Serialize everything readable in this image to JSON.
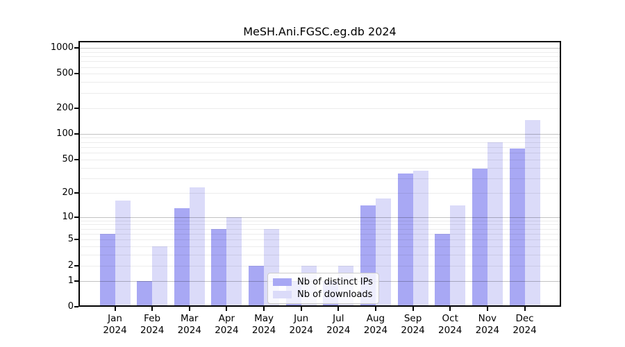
{
  "figure": {
    "title": "MeSH.Ani.FGSC.eg.db 2024"
  },
  "chart_data": {
    "type": "bar",
    "title": "MeSH.Ani.FGSC.eg.db 2024",
    "x": {
      "categories": [
        "Jan",
        "Feb",
        "Mar",
        "Apr",
        "May",
        "Jun",
        "Jul",
        "Aug",
        "Sep",
        "Oct",
        "Nov",
        "Dec"
      ],
      "year_label": "2024"
    },
    "y": {
      "scale": "log1p",
      "ticks": [
        0,
        1,
        2,
        5,
        10,
        20,
        50,
        100,
        200,
        500,
        1000
      ],
      "major_gridlines": [
        1,
        10,
        100,
        1000
      ],
      "ylim": [
        0,
        1000
      ],
      "grid": "horizontal-only"
    },
    "series": [
      {
        "name": "Nb of distinct IPs",
        "color": "#a8a8f4",
        "values": [
          6,
          1,
          13,
          7,
          2,
          1,
          1,
          14,
          34,
          6,
          39,
          67
        ]
      },
      {
        "name": "Nb of downloads",
        "color": "#dbdbf9",
        "values": [
          16,
          4,
          23,
          10,
          7,
          2,
          2,
          17,
          37,
          14,
          80,
          145
        ]
      }
    ],
    "legend": {
      "position": "inside-bottom-center",
      "items": [
        "Nb of distinct IPs",
        "Nb of downloads"
      ]
    }
  },
  "colors": {
    "background": "#ffffff",
    "frame": "#000000",
    "major_grid": "rgba(0,0,0,0.24)",
    "minor_grid": "rgba(0,0,0,0.075)",
    "text": "#000000",
    "legend_border": "#cccccc",
    "legend_background": "rgba(255,255,255,0.8)"
  }
}
